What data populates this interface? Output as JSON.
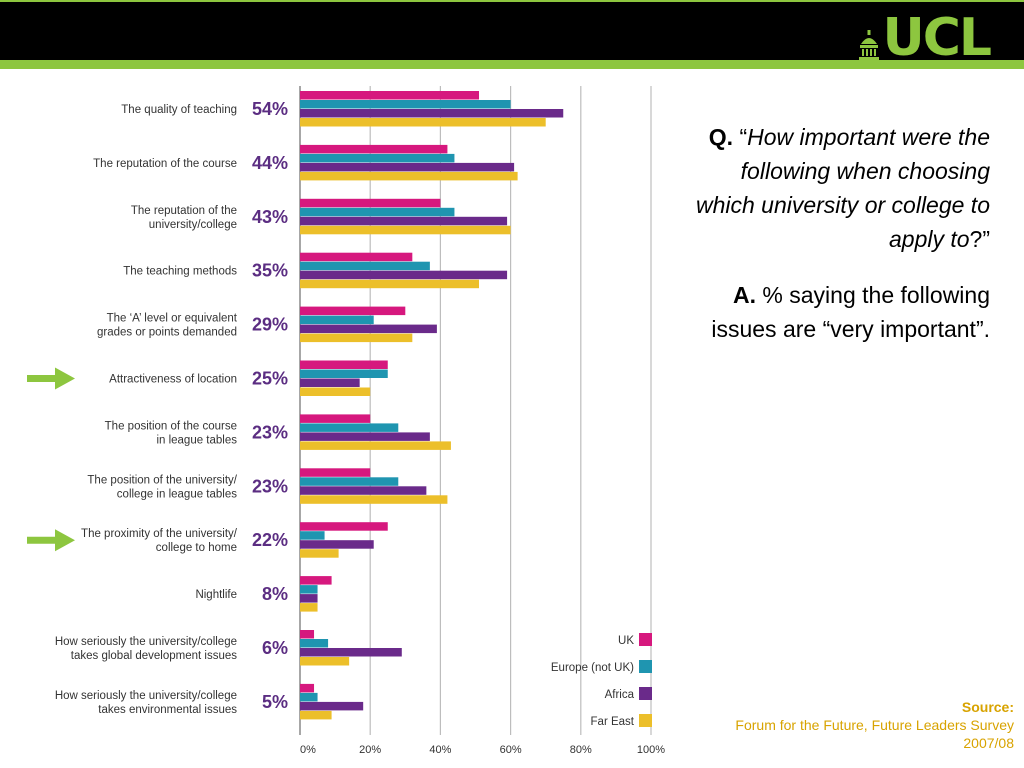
{
  "logo": {
    "text": "UCL",
    "icon": "dome-icon",
    "brand_color": "#8dc63f"
  },
  "question": {
    "q_label": "Q.",
    "open_quote": "“",
    "text": "How important were the following when choosing which university or college to apply to",
    "close": "?”"
  },
  "answer": {
    "a_label": "A.",
    "text": "% saying the following issues are “very important”."
  },
  "source": {
    "label": "Source:",
    "line1": "Forum for the Future, Future Leaders Survey",
    "line2": "2007/08"
  },
  "arrow_icons": [
    "arrow-right-icon",
    "arrow-right-icon"
  ],
  "chart_data": {
    "type": "bar",
    "orientation": "horizontal",
    "categories": [
      [
        "The quality of teaching"
      ],
      [
        "The reputation of the course"
      ],
      [
        "The reputation of the",
        "university/college"
      ],
      [
        "The teaching methods"
      ],
      [
        "The ‘A’ level or equivalent",
        "grades or points demanded"
      ],
      [
        "Attractiveness of location"
      ],
      [
        "The position of the course",
        "in league tables"
      ],
      [
        "The position of the university/",
        "college in league tables"
      ],
      [
        "The proximity of the university/",
        "college to home"
      ],
      [
        "Nightlife"
      ],
      [
        "How seriously the university/college",
        "takes global development issues"
      ],
      [
        "How seriously the university/college",
        "takes environmental issues"
      ]
    ],
    "overall_labels": [
      "54%",
      "44%",
      "43%",
      "35%",
      "29%",
      "25%",
      "23%",
      "23%",
      "22%",
      "8%",
      "6%",
      "5%"
    ],
    "highlighted_categories": [
      5,
      8
    ],
    "series": [
      {
        "name": "UK",
        "color": "#d6187e",
        "values": [
          51,
          42,
          40,
          32,
          30,
          25,
          20,
          20,
          25,
          9,
          4,
          4
        ]
      },
      {
        "name": "Europe (not UK)",
        "color": "#1f95b0",
        "values": [
          60,
          44,
          44,
          37,
          21,
          25,
          28,
          28,
          7,
          5,
          8,
          5
        ]
      },
      {
        "name": "Africa",
        "color": "#6a2a8a",
        "values": [
          75,
          61,
          59,
          59,
          39,
          17,
          37,
          36,
          21,
          5,
          29,
          18
        ]
      },
      {
        "name": "Far East",
        "color": "#ecbf2a",
        "values": [
          70,
          62,
          60,
          51,
          32,
          20,
          43,
          42,
          11,
          5,
          14,
          9
        ]
      }
    ],
    "xlim": [
      0,
      100
    ],
    "xticks": [
      "0%",
      "20%",
      "40%",
      "60%",
      "80%",
      "100%"
    ],
    "grid": true,
    "legend_position": "bottom-right"
  }
}
